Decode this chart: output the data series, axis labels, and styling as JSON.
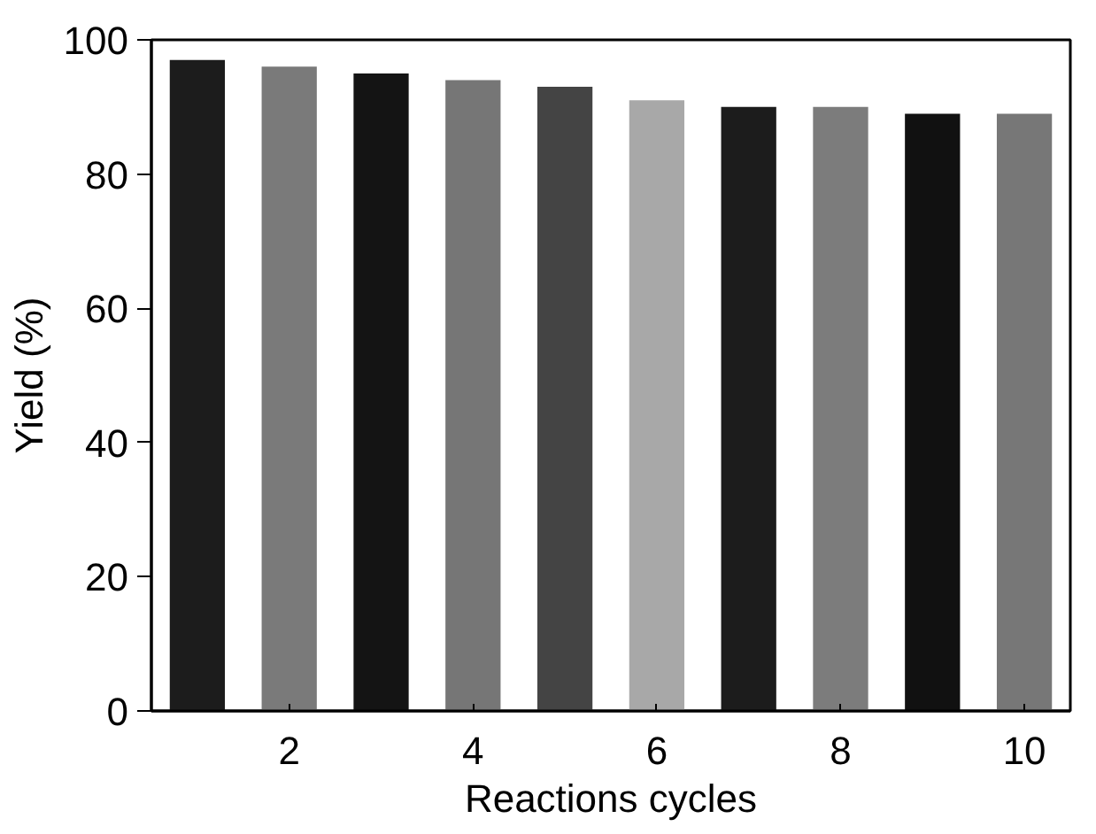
{
  "chart_data": {
    "type": "bar",
    "xlabel": "Reactions cycles",
    "ylabel": "Yield (%)",
    "x": [
      1,
      2,
      3,
      4,
      5,
      6,
      7,
      8,
      9,
      10
    ],
    "values": [
      97,
      96,
      95,
      94,
      93,
      91,
      90,
      90,
      89,
      89
    ],
    "colors": [
      "#1c1c1c",
      "#7a7a7a",
      "#141414",
      "#767676",
      "#444444",
      "#a8a8a8",
      "#1c1c1c",
      "#7c7c7c",
      "#111111",
      "#777777"
    ],
    "xlim": [
      0.5,
      10.5
    ],
    "xticks": [
      2,
      4,
      6,
      8,
      10
    ],
    "ylim": [
      0,
      100
    ],
    "yticks": [
      0,
      20,
      40,
      60,
      80,
      100
    ],
    "grid": false
  }
}
